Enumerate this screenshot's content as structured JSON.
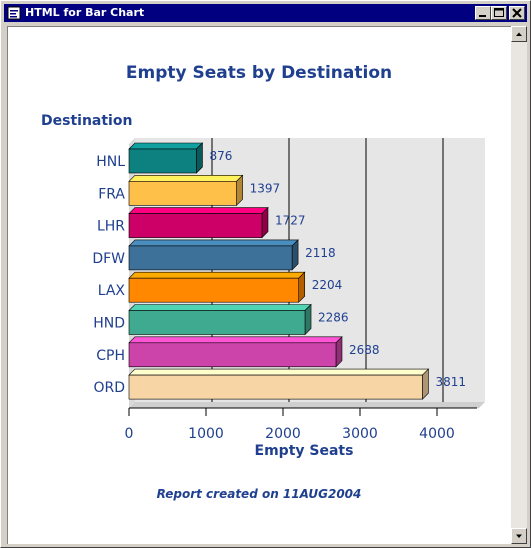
{
  "window": {
    "title": "HTML for Bar Chart",
    "buttons": [
      "minimize",
      "maximize",
      "close"
    ]
  },
  "report": {
    "footnote": "Report created on 11AUG2004"
  },
  "chart_data": {
    "type": "bar",
    "orientation": "horizontal",
    "style": "3d",
    "title": "Empty Seats by Destination",
    "ylabel": "Destination",
    "xlabel": "Empty Seats",
    "xlim": [
      0,
      4000
    ],
    "ticks": [
      0,
      1000,
      2000,
      3000,
      4000
    ],
    "grid": true,
    "categories": [
      "HNL",
      "FRA",
      "LHR",
      "DFW",
      "LAX",
      "HND",
      "CPH",
      "ORD"
    ],
    "values": [
      876,
      1397,
      1727,
      2118,
      2204,
      2286,
      2688,
      3811
    ],
    "colors": [
      "#0d8080",
      "#ffc04a",
      "#cc0066",
      "#3d7199",
      "#ff8800",
      "#40aa90",
      "#cc44aa",
      "#f8d5a5"
    ],
    "text_color": "#1f3f8f"
  }
}
